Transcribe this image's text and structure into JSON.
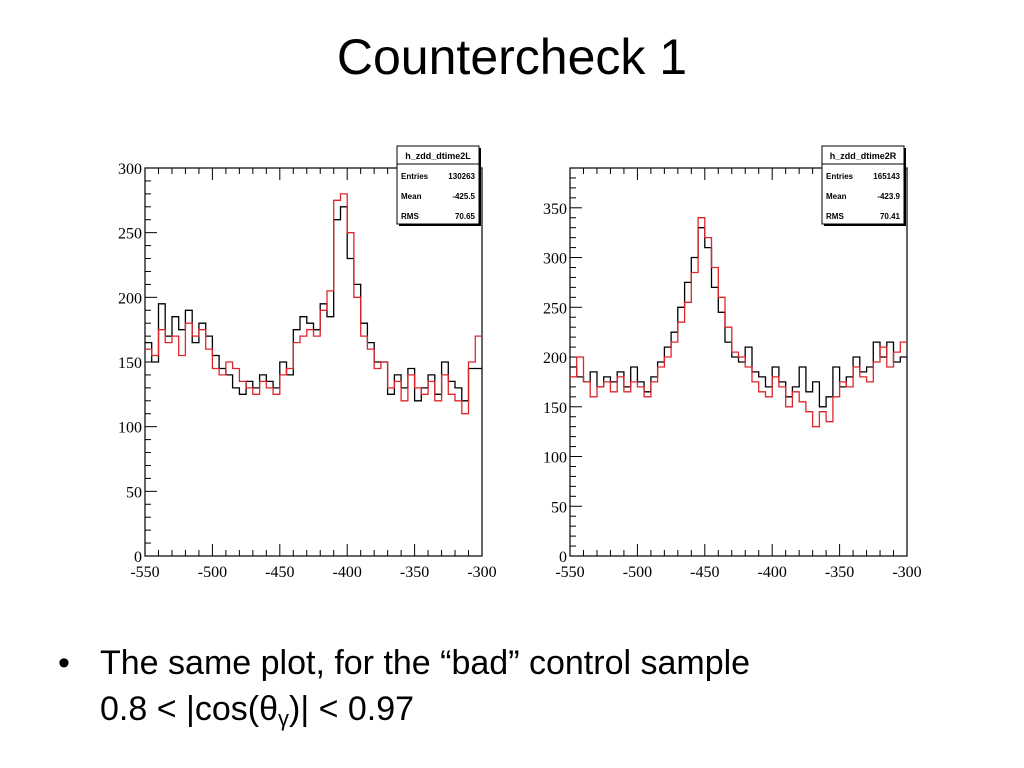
{
  "slide": {
    "title": "Countercheck 1",
    "bullet_line1": "The same plot, for the “bad” control sample",
    "bullet_line2_prefix": "0.8 < |cos(θ",
    "bullet_line2_sub": "γ",
    "bullet_line2_suffix": ")| < 0.97"
  },
  "colors": {
    "series_black": "#000000",
    "series_red": "#e0262b",
    "frame": "#000000"
  },
  "chart_data": [
    {
      "type": "line",
      "stats": {
        "name": "h_zdd_dtime2L",
        "entries_label": "Entries",
        "entries": "130263",
        "mean_label": "Mean",
        "mean": "-425.5",
        "rms_label": "RMS",
        "rms": "70.65"
      },
      "xlim": [
        -550,
        -300
      ],
      "ylim": [
        0,
        300
      ],
      "xticks": [
        "-550",
        "-500",
        "-450",
        "-400",
        "-350",
        "-300"
      ],
      "yticks": [
        "0",
        "50",
        "100",
        "150",
        "200",
        "250",
        "300"
      ],
      "x": [
        -550,
        -545,
        -540,
        -535,
        -530,
        -525,
        -520,
        -515,
        -510,
        -505,
        -500,
        -495,
        -490,
        -485,
        -480,
        -475,
        -470,
        -465,
        -460,
        -455,
        -450,
        -445,
        -440,
        -435,
        -430,
        -425,
        -420,
        -415,
        -410,
        -405,
        -400,
        -395,
        -390,
        -385,
        -380,
        -375,
        -370,
        -365,
        -360,
        -355,
        -350,
        -345,
        -340,
        -335,
        -330,
        -325,
        -320,
        -315,
        -310,
        -305
      ],
      "series": [
        {
          "values": [
            165,
            150,
            195,
            170,
            185,
            175,
            190,
            165,
            180,
            170,
            155,
            145,
            140,
            130,
            125,
            135,
            130,
            140,
            135,
            130,
            150,
            140,
            175,
            185,
            180,
            175,
            195,
            185,
            260,
            270,
            230,
            210,
            180,
            165,
            150,
            150,
            125,
            140,
            130,
            145,
            120,
            130,
            140,
            125,
            150,
            135,
            130,
            120,
            145,
            145
          ]
        },
        {
          "values": [
            160,
            155,
            175,
            165,
            170,
            155,
            180,
            170,
            175,
            160,
            145,
            140,
            150,
            145,
            135,
            130,
            125,
            135,
            130,
            125,
            140,
            145,
            165,
            170,
            175,
            170,
            190,
            205,
            275,
            280,
            250,
            200,
            170,
            160,
            145,
            150,
            130,
            135,
            120,
            140,
            130,
            125,
            135,
            120,
            140,
            125,
            120,
            110,
            150,
            170
          ]
        }
      ]
    },
    {
      "type": "line",
      "stats": {
        "name": "h_zdd_dtime2R",
        "entries_label": "Entries",
        "entries": "165143",
        "mean_label": "Mean",
        "mean": "-423.9",
        "rms_label": "RMS",
        "rms": "70.41"
      },
      "xlim": [
        -550,
        -300
      ],
      "ylim": [
        0,
        390
      ],
      "xticks": [
        "-550",
        "-500",
        "-450",
        "-400",
        "-350",
        "-300"
      ],
      "yticks": [
        "0",
        "50",
        "100",
        "150",
        "200",
        "250",
        "300",
        "350"
      ],
      "x": [
        -550,
        -545,
        -540,
        -535,
        -530,
        -525,
        -520,
        -515,
        -510,
        -505,
        -500,
        -495,
        -490,
        -485,
        -480,
        -475,
        -470,
        -465,
        -460,
        -455,
        -450,
        -445,
        -440,
        -435,
        -430,
        -425,
        -420,
        -415,
        -410,
        -405,
        -400,
        -395,
        -390,
        -385,
        -380,
        -375,
        -370,
        -365,
        -360,
        -355,
        -350,
        -345,
        -340,
        -335,
        -330,
        -325,
        -320,
        -315,
        -310,
        -305
      ],
      "series": [
        {
          "values": [
            190,
            180,
            175,
            185,
            170,
            180,
            175,
            185,
            170,
            190,
            175,
            165,
            180,
            195,
            210,
            225,
            250,
            275,
            300,
            330,
            310,
            270,
            245,
            215,
            200,
            195,
            210,
            185,
            180,
            170,
            190,
            175,
            160,
            170,
            190,
            165,
            175,
            150,
            160,
            190,
            170,
            180,
            200,
            185,
            190,
            215,
            200,
            215,
            195,
            200
          ]
        },
        {
          "values": [
            180,
            200,
            175,
            160,
            170,
            175,
            165,
            180,
            165,
            175,
            170,
            160,
            175,
            190,
            200,
            215,
            235,
            255,
            285,
            340,
            320,
            290,
            260,
            230,
            205,
            200,
            190,
            175,
            165,
            160,
            180,
            170,
            150,
            165,
            155,
            145,
            130,
            145,
            135,
            160,
            175,
            170,
            190,
            180,
            175,
            195,
            210,
            190,
            205,
            215
          ]
        }
      ]
    }
  ]
}
